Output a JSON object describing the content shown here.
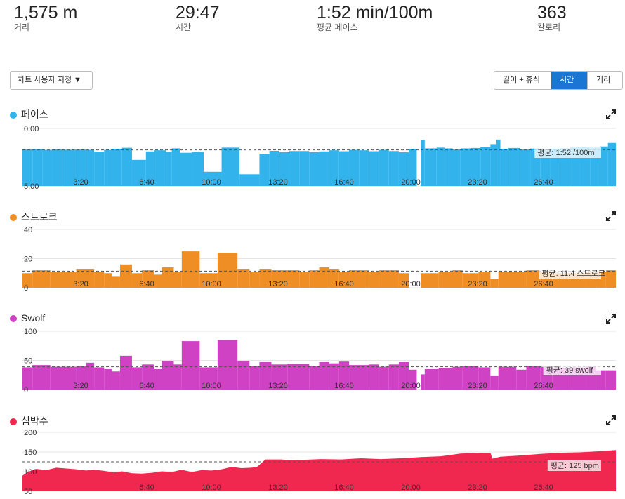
{
  "summary": [
    {
      "value": "1,575 m",
      "label": "거리"
    },
    {
      "value": "29:47",
      "label": "시간"
    },
    {
      "value": "1:52 min/100m",
      "label": "평균 페이스"
    },
    {
      "value": "363",
      "label": "칼로리"
    }
  ],
  "controls": {
    "customize_label": "차트 사용자 지정 ▼",
    "segments": [
      "길이 + 휴식",
      "시간",
      "거리"
    ],
    "active_segment": "시간"
  },
  "chart_data": [
    {
      "type": "bar",
      "title": "페이스",
      "color": "#33b3ec",
      "inverted": true,
      "y_tick_labels": [
        "0:00",
        "5:00"
      ],
      "ylim": [
        0,
        300
      ],
      "x_tick_labels": [
        "3:20",
        "6:40",
        "10:00",
        "13:20",
        "16:40",
        "20:00",
        "23:20",
        "26:40"
      ],
      "x_range_minutes": [
        0,
        29.8
      ],
      "average_value": 112,
      "average_label": "평균: 1:52 /100m",
      "bars": [
        {
          "start": 0.0,
          "end": 0.5,
          "value": 110
        },
        {
          "start": 0.5,
          "end": 1.0,
          "value": 108
        },
        {
          "start": 1.0,
          "end": 1.5,
          "value": 112
        },
        {
          "start": 1.5,
          "end": 2.0,
          "value": 109
        },
        {
          "start": 2.0,
          "end": 2.6,
          "value": 111
        },
        {
          "start": 2.6,
          "end": 3.2,
          "value": 110
        },
        {
          "start": 3.2,
          "end": 3.6,
          "value": 112
        },
        {
          "start": 3.6,
          "end": 4.1,
          "value": 121
        },
        {
          "start": 4.1,
          "end": 4.5,
          "value": 112
        },
        {
          "start": 4.5,
          "end": 5.0,
          "value": 106
        },
        {
          "start": 5.0,
          "end": 5.5,
          "value": 101
        },
        {
          "start": 5.5,
          "end": 6.2,
          "value": 164
        },
        {
          "start": 6.2,
          "end": 6.6,
          "value": 120
        },
        {
          "start": 6.6,
          "end": 7.2,
          "value": 114
        },
        {
          "start": 7.2,
          "end": 7.5,
          "value": 122
        },
        {
          "start": 7.5,
          "end": 7.9,
          "value": 104
        },
        {
          "start": 7.9,
          "end": 8.5,
          "value": 127
        },
        {
          "start": 8.5,
          "end": 9.1,
          "value": 122
        },
        {
          "start": 9.1,
          "end": 10.0,
          "value": 226
        },
        {
          "start": 10.0,
          "end": 10.9,
          "value": 100
        },
        {
          "start": 10.9,
          "end": 11.9,
          "value": 239
        },
        {
          "start": 11.9,
          "end": 12.4,
          "value": 132
        },
        {
          "start": 12.4,
          "end": 12.9,
          "value": 117
        },
        {
          "start": 12.9,
          "end": 13.4,
          "value": 124
        },
        {
          "start": 13.4,
          "end": 13.9,
          "value": 118
        },
        {
          "start": 13.9,
          "end": 14.4,
          "value": 118
        },
        {
          "start": 14.4,
          "end": 14.9,
          "value": 124
        },
        {
          "start": 14.9,
          "end": 15.4,
          "value": 120
        },
        {
          "start": 15.4,
          "end": 15.9,
          "value": 114
        },
        {
          "start": 15.9,
          "end": 16.4,
          "value": 119
        },
        {
          "start": 16.4,
          "end": 16.9,
          "value": 112
        },
        {
          "start": 16.9,
          "end": 17.4,
          "value": 114
        },
        {
          "start": 17.4,
          "end": 17.9,
          "value": 119
        },
        {
          "start": 17.9,
          "end": 18.4,
          "value": 112
        },
        {
          "start": 18.4,
          "end": 18.9,
          "value": 118
        },
        {
          "start": 18.9,
          "end": 19.4,
          "value": 124
        },
        {
          "start": 19.4,
          "end": 19.8,
          "value": 107
        },
        {
          "start": 20.0,
          "end": 20.2,
          "value": 60
        },
        {
          "start": 20.2,
          "end": 20.8,
          "value": 104
        },
        {
          "start": 20.8,
          "end": 21.2,
          "value": 100
        },
        {
          "start": 21.2,
          "end": 21.6,
          "value": 104
        },
        {
          "start": 21.6,
          "end": 22.0,
          "value": 110
        },
        {
          "start": 22.0,
          "end": 22.5,
          "value": 104
        },
        {
          "start": 22.5,
          "end": 23.0,
          "value": 102
        },
        {
          "start": 23.0,
          "end": 23.5,
          "value": 97
        },
        {
          "start": 23.5,
          "end": 23.8,
          "value": 82
        },
        {
          "start": 23.8,
          "end": 24.0,
          "value": 58
        },
        {
          "start": 24.0,
          "end": 24.4,
          "value": 106
        },
        {
          "start": 24.4,
          "end": 25.0,
          "value": 102
        },
        {
          "start": 25.0,
          "end": 25.5,
          "value": 110
        },
        {
          "start": 25.5,
          "end": 26.0,
          "value": 105
        },
        {
          "start": 26.0,
          "end": 26.5,
          "value": 110
        },
        {
          "start": 26.5,
          "end": 27.0,
          "value": 106
        },
        {
          "start": 27.0,
          "end": 27.5,
          "value": 104
        },
        {
          "start": 27.5,
          "end": 28.0,
          "value": 98
        },
        {
          "start": 28.0,
          "end": 28.5,
          "value": 96
        },
        {
          "start": 28.5,
          "end": 29.0,
          "value": 100
        },
        {
          "start": 29.0,
          "end": 29.4,
          "value": 94
        },
        {
          "start": 29.4,
          "end": 29.8,
          "value": 76
        }
      ]
    },
    {
      "type": "bar",
      "title": "스트로크",
      "color": "#ef8e24",
      "y_tick_labels": [
        "40",
        "20",
        "0"
      ],
      "ylim": [
        0,
        40
      ],
      "x_tick_labels": [
        "3:20",
        "6:40",
        "10:00",
        "13:20",
        "16:40",
        "20:00",
        "23:20",
        "26:40"
      ],
      "x_range_minutes": [
        0,
        29.8
      ],
      "average_value": 11.4,
      "average_label": "평균: 11.4 스트로크",
      "bars": [
        {
          "start": 0.0,
          "end": 0.5,
          "value": 10
        },
        {
          "start": 0.5,
          "end": 1.4,
          "value": 12
        },
        {
          "start": 1.4,
          "end": 2.7,
          "value": 11
        },
        {
          "start": 2.7,
          "end": 3.6,
          "value": 13
        },
        {
          "start": 3.6,
          "end": 4.1,
          "value": 11
        },
        {
          "start": 4.1,
          "end": 4.5,
          "value": 10
        },
        {
          "start": 4.5,
          "end": 4.9,
          "value": 8
        },
        {
          "start": 4.9,
          "end": 5.5,
          "value": 16
        },
        {
          "start": 5.5,
          "end": 6.0,
          "value": 10
        },
        {
          "start": 6.0,
          "end": 6.6,
          "value": 12
        },
        {
          "start": 6.6,
          "end": 7.0,
          "value": 9
        },
        {
          "start": 7.0,
          "end": 7.6,
          "value": 14
        },
        {
          "start": 7.6,
          "end": 8.0,
          "value": 11
        },
        {
          "start": 8.0,
          "end": 8.9,
          "value": 25
        },
        {
          "start": 8.9,
          "end": 9.8,
          "value": 10
        },
        {
          "start": 9.8,
          "end": 10.8,
          "value": 24
        },
        {
          "start": 10.8,
          "end": 11.4,
          "value": 13
        },
        {
          "start": 11.4,
          "end": 11.9,
          "value": 11
        },
        {
          "start": 11.9,
          "end": 12.5,
          "value": 13
        },
        {
          "start": 12.5,
          "end": 13.9,
          "value": 12
        },
        {
          "start": 13.9,
          "end": 14.4,
          "value": 11
        },
        {
          "start": 14.4,
          "end": 14.9,
          "value": 12
        },
        {
          "start": 14.9,
          "end": 15.4,
          "value": 14
        },
        {
          "start": 15.4,
          "end": 15.9,
          "value": 13
        },
        {
          "start": 15.9,
          "end": 16.4,
          "value": 11
        },
        {
          "start": 16.4,
          "end": 17.4,
          "value": 12
        },
        {
          "start": 17.4,
          "end": 17.9,
          "value": 11
        },
        {
          "start": 17.9,
          "end": 18.9,
          "value": 12
        },
        {
          "start": 18.9,
          "end": 19.4,
          "value": 10
        },
        {
          "start": 20.0,
          "end": 20.9,
          "value": 10
        },
        {
          "start": 20.9,
          "end": 21.6,
          "value": 11
        },
        {
          "start": 21.6,
          "end": 22.1,
          "value": 12
        },
        {
          "start": 22.1,
          "end": 22.9,
          "value": 10
        },
        {
          "start": 22.9,
          "end": 23.5,
          "value": 11
        },
        {
          "start": 23.5,
          "end": 23.9,
          "value": 6
        },
        {
          "start": 23.9,
          "end": 25.3,
          "value": 11
        },
        {
          "start": 25.3,
          "end": 26.0,
          "value": 12
        },
        {
          "start": 26.0,
          "end": 26.6,
          "value": 11
        },
        {
          "start": 26.6,
          "end": 28.3,
          "value": 10
        },
        {
          "start": 28.3,
          "end": 28.8,
          "value": 11
        },
        {
          "start": 28.8,
          "end": 29.3,
          "value": 11
        },
        {
          "start": 29.3,
          "end": 29.8,
          "value": 12
        }
      ]
    },
    {
      "type": "bar",
      "title": "Swolf",
      "color": "#d042c4",
      "y_tick_labels": [
        "100",
        "50",
        "0"
      ],
      "ylim": [
        0,
        100
      ],
      "x_tick_labels": [
        "3:20",
        "6:40",
        "10:00",
        "13:20",
        "16:40",
        "20:00",
        "23:20",
        "26:40"
      ],
      "x_range_minutes": [
        0,
        29.8
      ],
      "average_value": 39,
      "average_label": "평균: 39 swolf",
      "bars": [
        {
          "start": 0.0,
          "end": 0.5,
          "value": 38
        },
        {
          "start": 0.5,
          "end": 1.4,
          "value": 42
        },
        {
          "start": 1.4,
          "end": 2.7,
          "value": 39
        },
        {
          "start": 2.7,
          "end": 3.2,
          "value": 41
        },
        {
          "start": 3.2,
          "end": 3.6,
          "value": 46
        },
        {
          "start": 3.6,
          "end": 4.1,
          "value": 38
        },
        {
          "start": 4.1,
          "end": 4.5,
          "value": 35
        },
        {
          "start": 4.5,
          "end": 4.9,
          "value": 31
        },
        {
          "start": 4.9,
          "end": 5.5,
          "value": 58
        },
        {
          "start": 5.5,
          "end": 6.0,
          "value": 38
        },
        {
          "start": 6.0,
          "end": 6.6,
          "value": 43
        },
        {
          "start": 6.6,
          "end": 7.0,
          "value": 35
        },
        {
          "start": 7.0,
          "end": 7.6,
          "value": 49
        },
        {
          "start": 7.6,
          "end": 8.0,
          "value": 43
        },
        {
          "start": 8.0,
          "end": 8.9,
          "value": 83
        },
        {
          "start": 8.9,
          "end": 9.8,
          "value": 38
        },
        {
          "start": 9.8,
          "end": 10.8,
          "value": 85
        },
        {
          "start": 10.8,
          "end": 11.4,
          "value": 49
        },
        {
          "start": 11.4,
          "end": 11.9,
          "value": 41
        },
        {
          "start": 11.9,
          "end": 12.5,
          "value": 47
        },
        {
          "start": 12.5,
          "end": 13.3,
          "value": 43
        },
        {
          "start": 13.3,
          "end": 14.4,
          "value": 44
        },
        {
          "start": 14.4,
          "end": 14.9,
          "value": 40
        },
        {
          "start": 14.9,
          "end": 15.4,
          "value": 47
        },
        {
          "start": 15.4,
          "end": 15.9,
          "value": 45
        },
        {
          "start": 15.9,
          "end": 16.4,
          "value": 48
        },
        {
          "start": 16.4,
          "end": 17.4,
          "value": 42
        },
        {
          "start": 17.4,
          "end": 17.9,
          "value": 43
        },
        {
          "start": 17.9,
          "end": 18.4,
          "value": 39
        },
        {
          "start": 18.4,
          "end": 18.9,
          "value": 43
        },
        {
          "start": 18.9,
          "end": 19.4,
          "value": 47
        },
        {
          "start": 19.4,
          "end": 19.8,
          "value": 34
        },
        {
          "start": 20.0,
          "end": 20.2,
          "value": 26
        },
        {
          "start": 20.2,
          "end": 20.9,
          "value": 35
        },
        {
          "start": 20.9,
          "end": 21.6,
          "value": 37
        },
        {
          "start": 21.6,
          "end": 22.1,
          "value": 39
        },
        {
          "start": 22.1,
          "end": 22.9,
          "value": 41
        },
        {
          "start": 22.9,
          "end": 23.5,
          "value": 38
        },
        {
          "start": 23.5,
          "end": 23.9,
          "value": 23
        },
        {
          "start": 23.9,
          "end": 24.8,
          "value": 39
        },
        {
          "start": 24.8,
          "end": 25.3,
          "value": 34
        },
        {
          "start": 25.3,
          "end": 26.0,
          "value": 41
        },
        {
          "start": 26.0,
          "end": 26.6,
          "value": 39
        },
        {
          "start": 26.6,
          "end": 27.5,
          "value": 37
        },
        {
          "start": 27.5,
          "end": 28.3,
          "value": 38
        },
        {
          "start": 28.3,
          "end": 28.8,
          "value": 41
        },
        {
          "start": 28.8,
          "end": 29.3,
          "value": 33
        },
        {
          "start": 29.3,
          "end": 29.8,
          "value": 33
        }
      ]
    },
    {
      "type": "area",
      "title": "심박수",
      "color": "#f0274f",
      "y_tick_labels": [
        "200",
        "150",
        "100",
        "50"
      ],
      "ylim": [
        50,
        200
      ],
      "x_tick_labels": [
        "6:40",
        "10:00",
        "13:20",
        "16:40",
        "20:00",
        "23:20",
        "26:40"
      ],
      "x_range_minutes": [
        0,
        29.8
      ],
      "average_value": 125,
      "average_label": "평균: 125 bpm",
      "x": [
        0,
        0.3,
        0.7,
        1.2,
        1.7,
        2.2,
        2.7,
        3.2,
        3.6,
        4.1,
        4.6,
        5.0,
        5.5,
        6.0,
        6.5,
        7.0,
        7.5,
        8.0,
        8.5,
        9.0,
        9.5,
        10.0,
        10.5,
        11.0,
        11.5,
        11.8,
        12.2,
        12.6,
        13.0,
        13.5,
        14.0,
        15.0,
        16.0,
        17.0,
        18.0,
        19.0,
        20.0,
        21.0,
        22.0,
        23.0,
        23.5,
        23.6,
        24.0,
        25.0,
        26.0,
        27.0,
        28.0,
        29.0,
        29.8
      ],
      "y": [
        90,
        100,
        107,
        104,
        110,
        108,
        106,
        103,
        105,
        102,
        98,
        101,
        96,
        95,
        97,
        101,
        99,
        105,
        99,
        104,
        103,
        106,
        112,
        109,
        110,
        113,
        131,
        131,
        131,
        129,
        130,
        132,
        131,
        134,
        132,
        134,
        137,
        139,
        146,
        148,
        148,
        133,
        138,
        141,
        145,
        148,
        149,
        152,
        155
      ]
    }
  ]
}
